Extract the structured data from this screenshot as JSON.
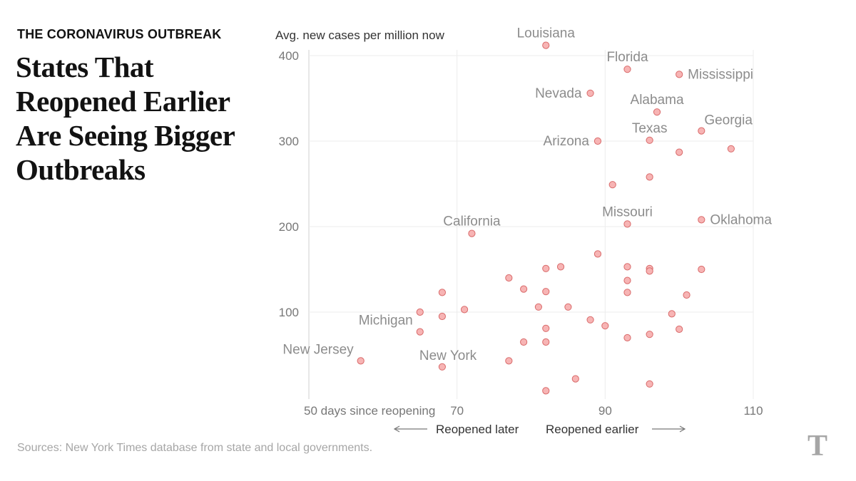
{
  "kicker": "THE CORONAVIRUS OUTBREAK",
  "headline": "States That Reopened Earlier Are Seeing Bigger Outbreaks",
  "source": "Sources: New York Times database from state and local governments.",
  "logo": "T",
  "colors": {
    "point_fill": "#f7b4b4",
    "point_stroke": "#d96a6a",
    "label": "#8c8c8c",
    "grid": "#ececec"
  },
  "chart_data": {
    "type": "scatter",
    "ylabel": "Avg. new cases per million now",
    "xlabel": "days since reopening",
    "x_tick_labels": [
      "50 days since reopening",
      "70",
      "90",
      "110"
    ],
    "x_ticks": [
      50,
      70,
      90,
      110
    ],
    "y_ticks": [
      100,
      200,
      300,
      400
    ],
    "xlim": [
      50,
      110
    ],
    "ylim": [
      0,
      400
    ],
    "direction_left": "Reopened later",
    "direction_right": "Reopened earlier",
    "points": [
      {
        "x": 82,
        "y": 412,
        "label": "Louisiana"
      },
      {
        "x": 93,
        "y": 384,
        "label": "Florida"
      },
      {
        "x": 100,
        "y": 378,
        "label": "Mississippi"
      },
      {
        "x": 88,
        "y": 356,
        "label": "Nevada"
      },
      {
        "x": 97,
        "y": 334,
        "label": "Alabama"
      },
      {
        "x": 103,
        "y": 312,
        "label": "Georgia"
      },
      {
        "x": 89,
        "y": 300,
        "label": "Arizona"
      },
      {
        "x": 96,
        "y": 301,
        "label": "Texas"
      },
      {
        "x": 100,
        "y": 287,
        "label": ""
      },
      {
        "x": 107,
        "y": 291,
        "label": ""
      },
      {
        "x": 96,
        "y": 258,
        "label": ""
      },
      {
        "x": 91,
        "y": 249,
        "label": ""
      },
      {
        "x": 93,
        "y": 203,
        "label": "Missouri"
      },
      {
        "x": 103,
        "y": 208,
        "label": "Oklahoma"
      },
      {
        "x": 72,
        "y": 192,
        "label": "California"
      },
      {
        "x": 89,
        "y": 168,
        "label": ""
      },
      {
        "x": 82,
        "y": 151,
        "label": ""
      },
      {
        "x": 84,
        "y": 153,
        "label": ""
      },
      {
        "x": 93,
        "y": 153,
        "label": ""
      },
      {
        "x": 96,
        "y": 151,
        "label": ""
      },
      {
        "x": 96,
        "y": 148,
        "label": ""
      },
      {
        "x": 103,
        "y": 150,
        "label": ""
      },
      {
        "x": 77,
        "y": 140,
        "label": ""
      },
      {
        "x": 93,
        "y": 137,
        "label": ""
      },
      {
        "x": 79,
        "y": 127,
        "label": ""
      },
      {
        "x": 68,
        "y": 123,
        "label": ""
      },
      {
        "x": 82,
        "y": 124,
        "label": ""
      },
      {
        "x": 93,
        "y": 123,
        "label": ""
      },
      {
        "x": 101,
        "y": 120,
        "label": ""
      },
      {
        "x": 81,
        "y": 106,
        "label": ""
      },
      {
        "x": 85,
        "y": 106,
        "label": ""
      },
      {
        "x": 71,
        "y": 103,
        "label": ""
      },
      {
        "x": 65,
        "y": 100,
        "label": ""
      },
      {
        "x": 68,
        "y": 95,
        "label": ""
      },
      {
        "x": 99,
        "y": 98,
        "label": ""
      },
      {
        "x": 88,
        "y": 91,
        "label": ""
      },
      {
        "x": 90,
        "y": 84,
        "label": ""
      },
      {
        "x": 82,
        "y": 81,
        "label": ""
      },
      {
        "x": 100,
        "y": 80,
        "label": ""
      },
      {
        "x": 65,
        "y": 77,
        "label": "Michigan"
      },
      {
        "x": 96,
        "y": 74,
        "label": ""
      },
      {
        "x": 93,
        "y": 70,
        "label": ""
      },
      {
        "x": 79,
        "y": 65,
        "label": ""
      },
      {
        "x": 82,
        "y": 65,
        "label": ""
      },
      {
        "x": 57,
        "y": 43,
        "label": "New Jersey"
      },
      {
        "x": 77,
        "y": 43,
        "label": ""
      },
      {
        "x": 68,
        "y": 36,
        "label": "New York"
      },
      {
        "x": 86,
        "y": 22,
        "label": ""
      },
      {
        "x": 96,
        "y": 16,
        "label": ""
      },
      {
        "x": 82,
        "y": 8,
        "label": ""
      }
    ]
  }
}
